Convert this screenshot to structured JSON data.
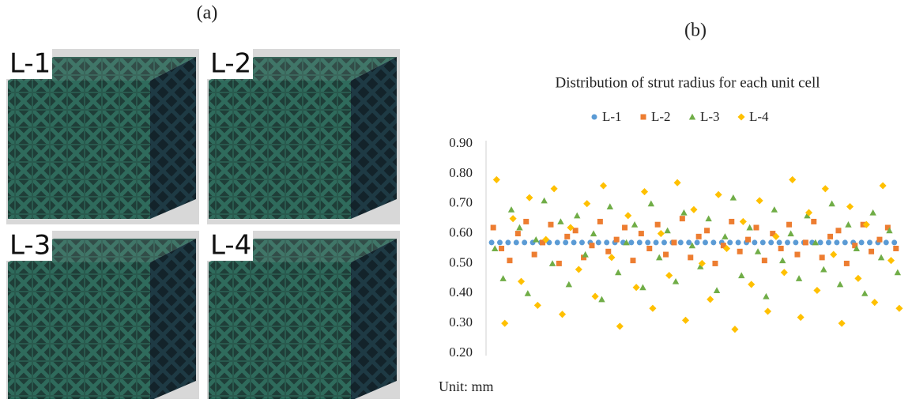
{
  "panel_a": {
    "label": "(a)",
    "tiles": [
      "L-1",
      "L-2",
      "L-3",
      "L-4"
    ]
  },
  "panel_b": {
    "label": "(b)"
  },
  "chart_data": {
    "type": "scatter",
    "title": "Distribution of strut radius for each unit cell",
    "annotation": "Unit: mm",
    "ylim": [
      0.2,
      0.9
    ],
    "yticks": [
      {
        "value": 0.2,
        "label": "0.20"
      },
      {
        "value": 0.3,
        "label": "0.30"
      },
      {
        "value": 0.4,
        "label": "0.40"
      },
      {
        "value": 0.5,
        "label": "0.50"
      },
      {
        "value": 0.6,
        "label": "0.60"
      },
      {
        "value": 0.7,
        "label": "0.70"
      },
      {
        "value": 0.8,
        "label": "0.80"
      },
      {
        "value": 0.9,
        "label": "0.90"
      }
    ],
    "grid": false,
    "legend": "top",
    "series": [
      {
        "name": "L-1",
        "color": "#5B9BD5",
        "marker": "circle",
        "values": [
          0.57,
          0.57,
          0.57,
          0.57,
          0.57,
          0.57,
          0.57,
          0.57,
          0.57,
          0.57,
          0.57,
          0.57,
          0.57,
          0.57,
          0.57,
          0.57,
          0.57,
          0.57,
          0.57,
          0.57,
          0.57,
          0.57,
          0.57,
          0.57,
          0.57,
          0.57,
          0.57,
          0.57,
          0.57,
          0.57,
          0.57,
          0.57,
          0.57,
          0.57,
          0.57,
          0.57,
          0.57,
          0.57,
          0.57,
          0.57,
          0.57,
          0.57,
          0.57,
          0.57,
          0.57,
          0.57,
          0.57,
          0.57,
          0.57,
          0.57
        ]
      },
      {
        "name": "L-2",
        "color": "#ED7D31",
        "marker": "square",
        "values": [
          0.62,
          0.55,
          0.51,
          0.6,
          0.64,
          0.53,
          0.57,
          0.63,
          0.5,
          0.59,
          0.61,
          0.52,
          0.56,
          0.64,
          0.54,
          0.58,
          0.62,
          0.51,
          0.6,
          0.55,
          0.63,
          0.53,
          0.57,
          0.65,
          0.52,
          0.59,
          0.61,
          0.5,
          0.56,
          0.64,
          0.54,
          0.58,
          0.62,
          0.51,
          0.6,
          0.55,
          0.63,
          0.53,
          0.57,
          0.64,
          0.52,
          0.59,
          0.61,
          0.5,
          0.56,
          0.63,
          0.54,
          0.58,
          0.62,
          0.55
        ]
      },
      {
        "name": "L-3",
        "color": "#70AD47",
        "marker": "triangle",
        "values": [
          0.55,
          0.45,
          0.68,
          0.62,
          0.4,
          0.58,
          0.71,
          0.5,
          0.64,
          0.43,
          0.66,
          0.53,
          0.6,
          0.38,
          0.69,
          0.47,
          0.57,
          0.63,
          0.42,
          0.7,
          0.52,
          0.61,
          0.44,
          0.67,
          0.56,
          0.49,
          0.65,
          0.41,
          0.59,
          0.72,
          0.46,
          0.62,
          0.54,
          0.39,
          0.68,
          0.51,
          0.6,
          0.45,
          0.66,
          0.57,
          0.48,
          0.7,
          0.43,
          0.63,
          0.55,
          0.4,
          0.67,
          0.52,
          0.61,
          0.47
        ]
      },
      {
        "name": "L-4",
        "color": "#FFC000",
        "marker": "diamond",
        "values": [
          0.78,
          0.3,
          0.65,
          0.44,
          0.72,
          0.36,
          0.58,
          0.75,
          0.33,
          0.62,
          0.48,
          0.7,
          0.39,
          0.76,
          0.52,
          0.29,
          0.66,
          0.42,
          0.74,
          0.35,
          0.6,
          0.46,
          0.77,
          0.31,
          0.68,
          0.5,
          0.38,
          0.73,
          0.55,
          0.28,
          0.64,
          0.43,
          0.71,
          0.34,
          0.59,
          0.47,
          0.78,
          0.32,
          0.67,
          0.41,
          0.75,
          0.53,
          0.3,
          0.69,
          0.45,
          0.63,
          0.37,
          0.76,
          0.51,
          0.35
        ]
      }
    ]
  }
}
